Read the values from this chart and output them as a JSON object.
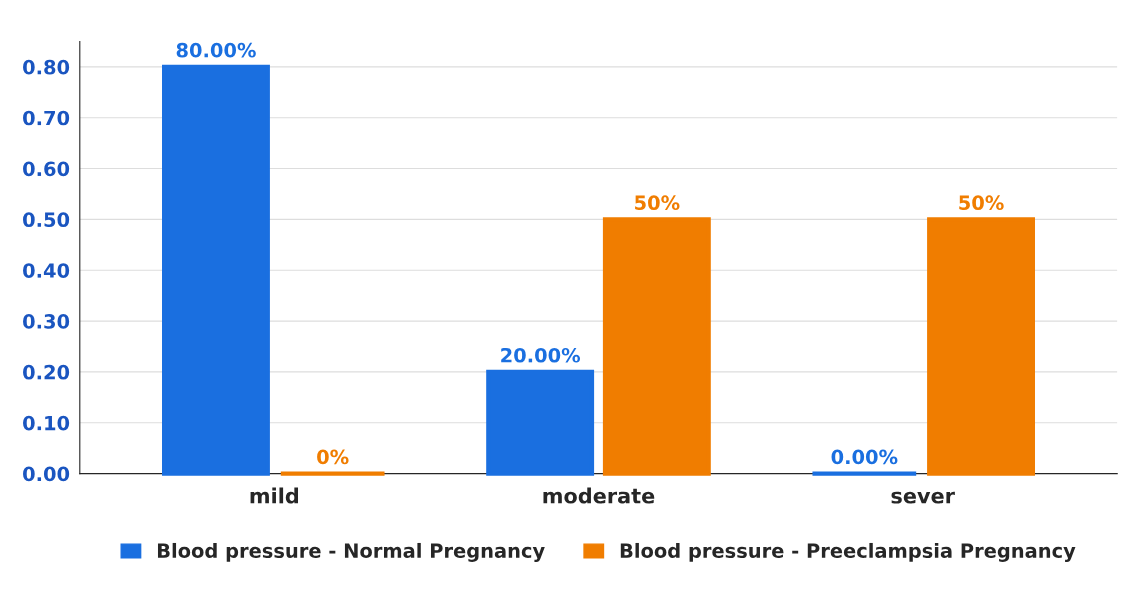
{
  "chart_data": {
    "type": "bar",
    "categories": [
      "mild",
      "moderate",
      "sever"
    ],
    "series": [
      {
        "name": "Blood pressure - Normal Pregnancy",
        "color": "#1a6fe0",
        "values": [
          0.8,
          0.2,
          0.0
        ],
        "value_labels": [
          "80.00%",
          "20.00%",
          "0.00%"
        ]
      },
      {
        "name": "Blood pressure - Preeclampsia Pregnancy",
        "color": "#f07d00",
        "values": [
          0.0,
          0.5,
          0.5
        ],
        "value_labels": [
          "0%",
          "50%",
          "50%"
        ]
      }
    ],
    "ylim": [
      0,
      0.85
    ],
    "yticks": [
      {
        "value": 0,
        "label": "0.00"
      },
      {
        "value": 0.1,
        "label": "0.10"
      },
      {
        "value": 0.2,
        "label": "0.20"
      },
      {
        "value": 0.3,
        "label": "0.30"
      },
      {
        "value": 0.4,
        "label": "0.40"
      },
      {
        "value": 0.5,
        "label": "0.50"
      },
      {
        "value": 0.6,
        "label": "0.60"
      },
      {
        "value": 0.7,
        "label": "0.70"
      },
      {
        "value": 0.8,
        "label": "0.80"
      }
    ],
    "grid": "y",
    "legend": "bottom"
  }
}
